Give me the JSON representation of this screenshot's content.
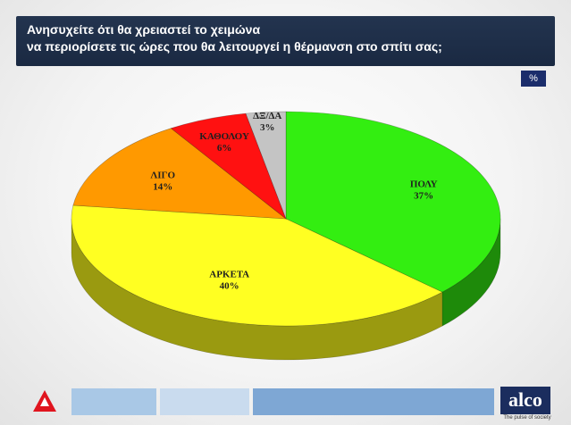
{
  "header": {
    "title_line1": "Ανησυχείτε ότι θα χρειαστεί το χειμώνα",
    "title_line2": "να περιορίσετε τις ώρες που θα λειτουργεί η θέρμανση στο σπίτι σας;",
    "unit": "%"
  },
  "chart_data": {
    "type": "pie",
    "title": "Ανησυχείτε ότι θα χρειαστεί το χειμώνα να περιορίσετε τις ώρες που θα λειτουργεί η θέρμανση στο σπίτι σας;",
    "unit": "%",
    "categories": [
      "ΠΟΛΥ",
      "ΑΡΚΕΤΑ",
      "ΛΙΓΟ",
      "ΚΑΘΟΛΟΥ",
      "ΔΞ/ΔΑ"
    ],
    "values": [
      37,
      40,
      14,
      6,
      3
    ],
    "value_labels": [
      "37%",
      "40%",
      "14%",
      "6%",
      "3%"
    ],
    "colors": [
      "#33ee11",
      "#ffff22",
      "#ff9900",
      "#ff1111",
      "#c4c4c4"
    ],
    "side_colors": [
      "#1e8a0a",
      "#9a9a10",
      "#9a5c00",
      "#8a0a0a",
      "#7a7a7a"
    ],
    "style": "3d-pie"
  },
  "footer": {
    "alco_logo": "alco",
    "alco_tagline": "The pulse of society",
    "left_logo_icon": "alpha-news-logo-icon"
  }
}
